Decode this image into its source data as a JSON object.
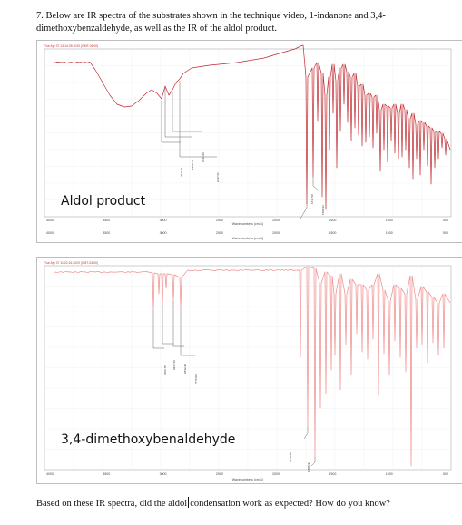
{
  "question_text": "7. Below are IR spectra of the substrates shown in the technique video, 1-indanone and 3,4-dimethoxybenzaldehyde, as well as the IR of the aldol product.",
  "footer": {
    "text_before_cursor": "Based on these IR spectra, did the aldol",
    "text_after_cursor": "condensation work as expected? How do you know?"
  },
  "colors": {
    "spectrum1": "#c0282f",
    "spectrum2": "#f08a8a",
    "leader": "#666666",
    "grid": "#e6e6e6"
  },
  "spectra": [
    {
      "label": "Aldol product",
      "header": "Tue Apr 07 13:14:39 2020 (GMT-04:00)",
      "xlabel": "Wavenumbers (cm-1)",
      "x_ticks": [
        "4000",
        "3500",
        "3000",
        "2500",
        "2000",
        "1500",
        "1000",
        "500"
      ],
      "peak_labels": [
        "3011.21",
        "2950.70",
        "2936.96",
        "2837.61",
        "1611.50",
        "1581.93"
      ]
    },
    {
      "label": "3,4-dimethoxybenaldehyde",
      "header": "Tue Apr 07 11:22:16 2020 (GMT-04:00)",
      "xlabel": "Wavenumbers (cm-1)",
      "x_ticks": [
        "4000",
        "3500",
        "3000",
        "2500",
        "2000",
        "1500",
        "1000",
        "500"
      ],
      "peak_labels": [
        "3006.70",
        "2937.66",
        "2842.94",
        "2776.00",
        "1678.90",
        "1585.97"
      ]
    }
  ]
}
